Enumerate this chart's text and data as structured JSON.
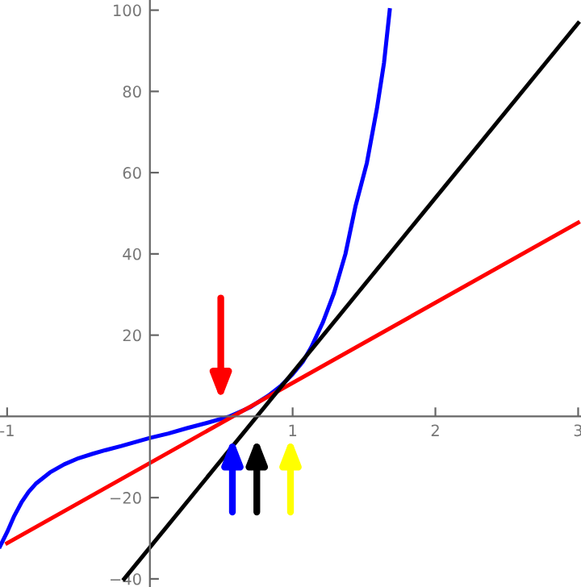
{
  "chart_data": {
    "type": "line",
    "xlim": [
      -1.05,
      3.02
    ],
    "ylim": [
      -42,
      102.5
    ],
    "xticks": [
      -1,
      1,
      2,
      3
    ],
    "yticks": [
      {
        "value": -40,
        "label": "−40"
      },
      {
        "value": -20,
        "label": "−20"
      },
      20,
      40,
      60,
      80,
      100
    ],
    "grid": false,
    "legend": false,
    "marker": "none",
    "line_style": "solid",
    "series": [
      {
        "color": "#0000ff",
        "x": [
          -1.05,
          -1.0,
          -0.95,
          -0.9,
          -0.85,
          -0.8,
          -0.7,
          -0.6,
          -0.5,
          -0.4,
          -0.31,
          -0.2,
          -0.1,
          0,
          0.13,
          0.26,
          0.4,
          0.56,
          0.7,
          0.83,
          0.92,
          1.0,
          1.07,
          1.13,
          1.21,
          1.29,
          1.37,
          1.44,
          1.52,
          1.59,
          1.64,
          1.68
        ],
        "values": [
          -32,
          -28.5,
          -24.5,
          -21.2,
          -18.6,
          -16.6,
          -13.8,
          -11.8,
          -10.3,
          -9.2,
          -8.3,
          -7.3,
          -6.3,
          -5.3,
          -4.2,
          -2.9,
          -1.6,
          0,
          2.2,
          5.1,
          7.6,
          10.4,
          13.4,
          17,
          23,
          30.4,
          40,
          51.7,
          62.4,
          75.7,
          87,
          100
        ]
      },
      {
        "color": "#ff0000",
        "x": [
          -1,
          3
        ],
        "values": [
          -31.2,
          47.7
        ]
      },
      {
        "color": "#000000",
        "x": [
          -0.18,
          3
        ],
        "values": [
          -40,
          96.8
        ]
      }
    ]
  }
}
